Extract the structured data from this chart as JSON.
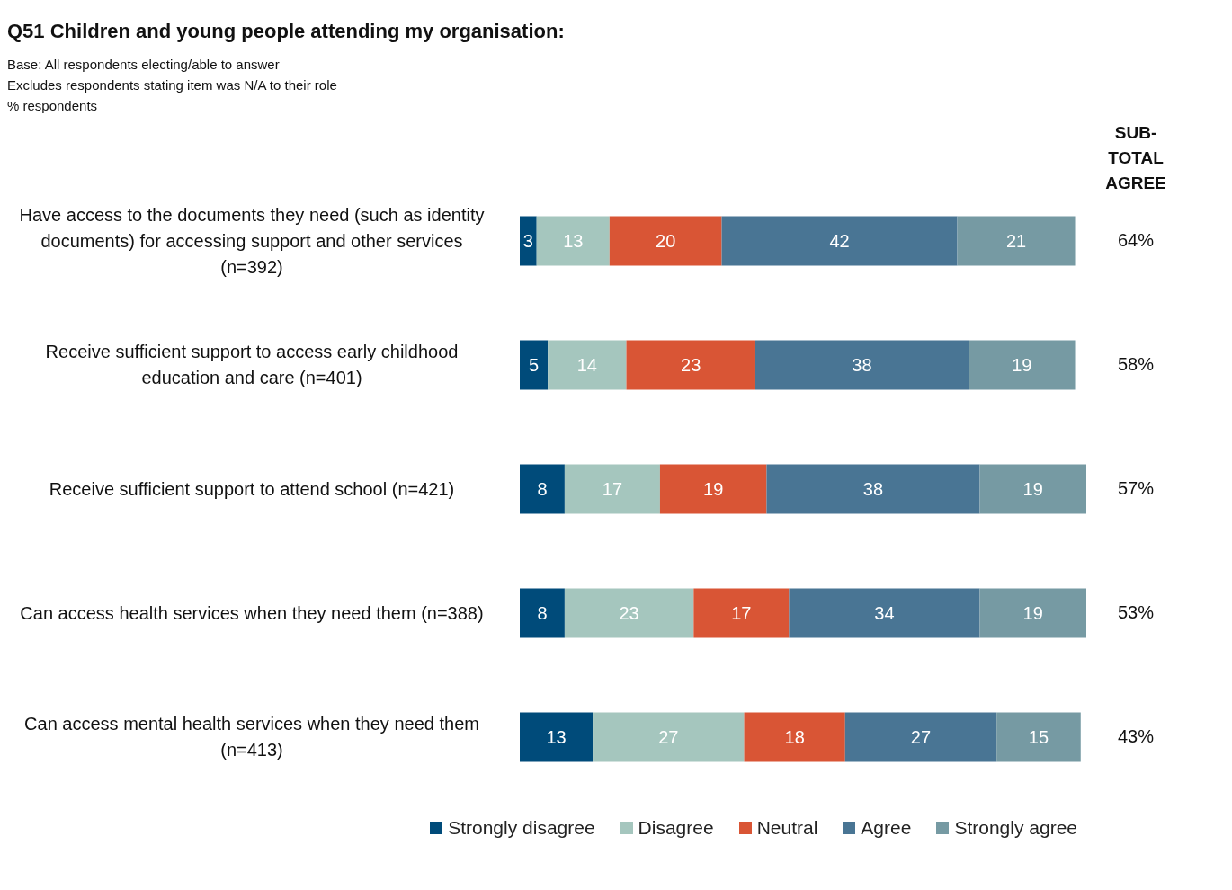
{
  "chart_data": {
    "type": "bar",
    "orientation": "horizontal",
    "stacked": true,
    "title": "Q51 Children and young people attending my organisation:",
    "subtitle": "Base: All respondents electing/able to answer\nExcludes respondents stating item was N/A to their role\n% respondents",
    "categories": [
      "Have access to the documents they need (such as identity documents) for accessing support and other services (n=392)",
      "Receive sufficient support to access early childhood education and care (n=401)",
      "Receive sufficient support to attend school (n=421)",
      "Can access health services when they need them (n=388)",
      "Can access mental health services when they need them (n=413)"
    ],
    "series": [
      {
        "name": "Strongly disagree",
        "color": "#004b7a",
        "values": [
          3,
          5,
          8,
          8,
          13
        ]
      },
      {
        "name": "Disagree",
        "color": "#a5c6be",
        "values": [
          13,
          14,
          17,
          23,
          27
        ]
      },
      {
        "name": "Neutral",
        "color": "#d95535",
        "values": [
          20,
          23,
          19,
          17,
          18
        ]
      },
      {
        "name": "Agree",
        "color": "#497594",
        "values": [
          42,
          38,
          38,
          34,
          27
        ]
      },
      {
        "name": "Strongly agree",
        "color": "#769aa3",
        "values": [
          21,
          19,
          19,
          19,
          15
        ]
      }
    ],
    "data_labels": true,
    "legend": "bottom",
    "grid": false,
    "annotations": [
      "SUB-TOTAL AGREE",
      "64%",
      "58%",
      "57%",
      "53%",
      "43%"
    ]
  }
}
